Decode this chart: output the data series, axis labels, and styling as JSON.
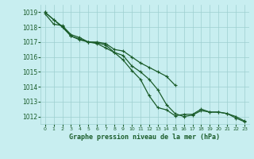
{
  "title": "Graphe pression niveau de la mer (hPa)",
  "background_color": "#c8eef0",
  "grid_color": "#9ecfcf",
  "line_color": "#1a5c2a",
  "hours": [
    0,
    1,
    2,
    3,
    4,
    5,
    6,
    7,
    8,
    9,
    10,
    11,
    12,
    13,
    14,
    15,
    16,
    17,
    18,
    19,
    20,
    21,
    22,
    23
  ],
  "series1": [
    1019.0,
    1018.5,
    1018.0,
    1017.4,
    1017.2,
    1017.0,
    1017.0,
    1016.9,
    1016.5,
    1016.4,
    1016.0,
    1015.6,
    1015.3,
    1015.0,
    1014.7,
    1014.1,
    null,
    null,
    null,
    null,
    null,
    null,
    null,
    null
  ],
  "series2": [
    1018.9,
    1018.2,
    1018.1,
    1017.5,
    1017.3,
    1017.0,
    1016.9,
    1016.6,
    1016.3,
    1016.1,
    1015.4,
    1015.0,
    1014.5,
    1013.8,
    1012.8,
    1012.2,
    1012.0,
    1012.1,
    1012.4,
    1012.3,
    1012.3,
    1012.2,
    1011.9,
    1011.65
  ],
  "series3": [
    1019.0,
    1018.5,
    1018.05,
    1017.4,
    1017.15,
    1017.0,
    1016.95,
    1016.8,
    1016.3,
    1015.8,
    1015.1,
    1014.5,
    1013.4,
    1012.6,
    1012.45,
    1012.05,
    1012.15,
    1012.15,
    1012.5,
    1012.3,
    1012.3,
    1012.2,
    1012.0,
    1011.7
  ],
  "ylim": [
    1011.5,
    1019.5
  ],
  "yticks": [
    1012,
    1013,
    1014,
    1015,
    1016,
    1017,
    1018,
    1019
  ],
  "xlim": [
    -0.5,
    23.5
  ],
  "xticks": [
    0,
    1,
    2,
    3,
    4,
    5,
    6,
    7,
    8,
    9,
    10,
    11,
    12,
    13,
    14,
    15,
    16,
    17,
    18,
    19,
    20,
    21,
    22,
    23
  ]
}
